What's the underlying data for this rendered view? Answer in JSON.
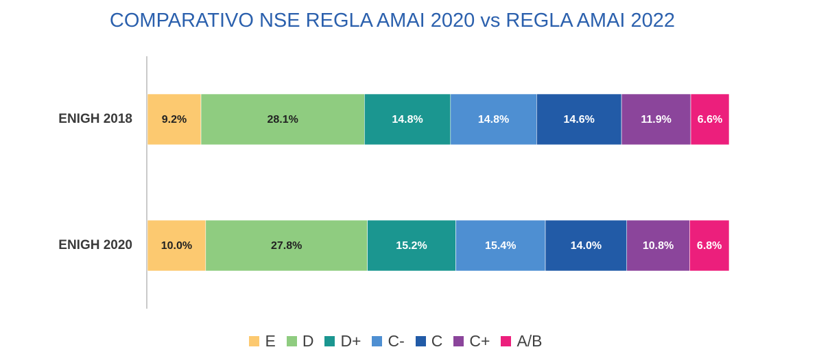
{
  "chart_data": {
    "type": "bar",
    "orientation": "horizontal",
    "stacked": true,
    "title": "COMPARATIVO NSE REGLA AMAI 2020 vs REGLA AMAI 2022",
    "categories": [
      "ENIGH 2018",
      "ENIGH 2020"
    ],
    "series": [
      {
        "name": "E",
        "color": "#fcc970",
        "label_color": "#222222",
        "values": [
          9.2,
          10.0
        ],
        "labels": [
          "9.2%",
          "10.0%"
        ]
      },
      {
        "name": "D",
        "color": "#8fcc80",
        "label_color": "#222222",
        "values": [
          28.1,
          27.8
        ],
        "labels": [
          "28.1%",
          "27.8%"
        ]
      },
      {
        "name": "D+",
        "color": "#1b9690",
        "label_color": "#ffffff",
        "values": [
          14.8,
          15.2
        ],
        "labels": [
          "14.8%",
          "15.2%"
        ]
      },
      {
        "name": "C-",
        "color": "#4e8fd2",
        "label_color": "#ffffff",
        "values": [
          14.8,
          15.4
        ],
        "labels": [
          "14.8%",
          "15.4%"
        ]
      },
      {
        "name": "C",
        "color": "#225ba7",
        "label_color": "#ffffff",
        "values": [
          14.6,
          14.0
        ],
        "labels": [
          "14.6%",
          "14.0%"
        ]
      },
      {
        "name": "C+",
        "color": "#8b459b",
        "label_color": "#ffffff",
        "values": [
          11.9,
          10.8
        ],
        "labels": [
          "11.9%",
          "10.8%"
        ]
      },
      {
        "name": "A/B",
        "color": "#ec1f7c",
        "label_color": "#ffffff",
        "values": [
          6.6,
          6.8
        ],
        "labels": [
          "6.6%",
          "6.8%"
        ]
      }
    ],
    "xlim": [
      0,
      100
    ],
    "legend_position": "bottom",
    "grid": false
  }
}
